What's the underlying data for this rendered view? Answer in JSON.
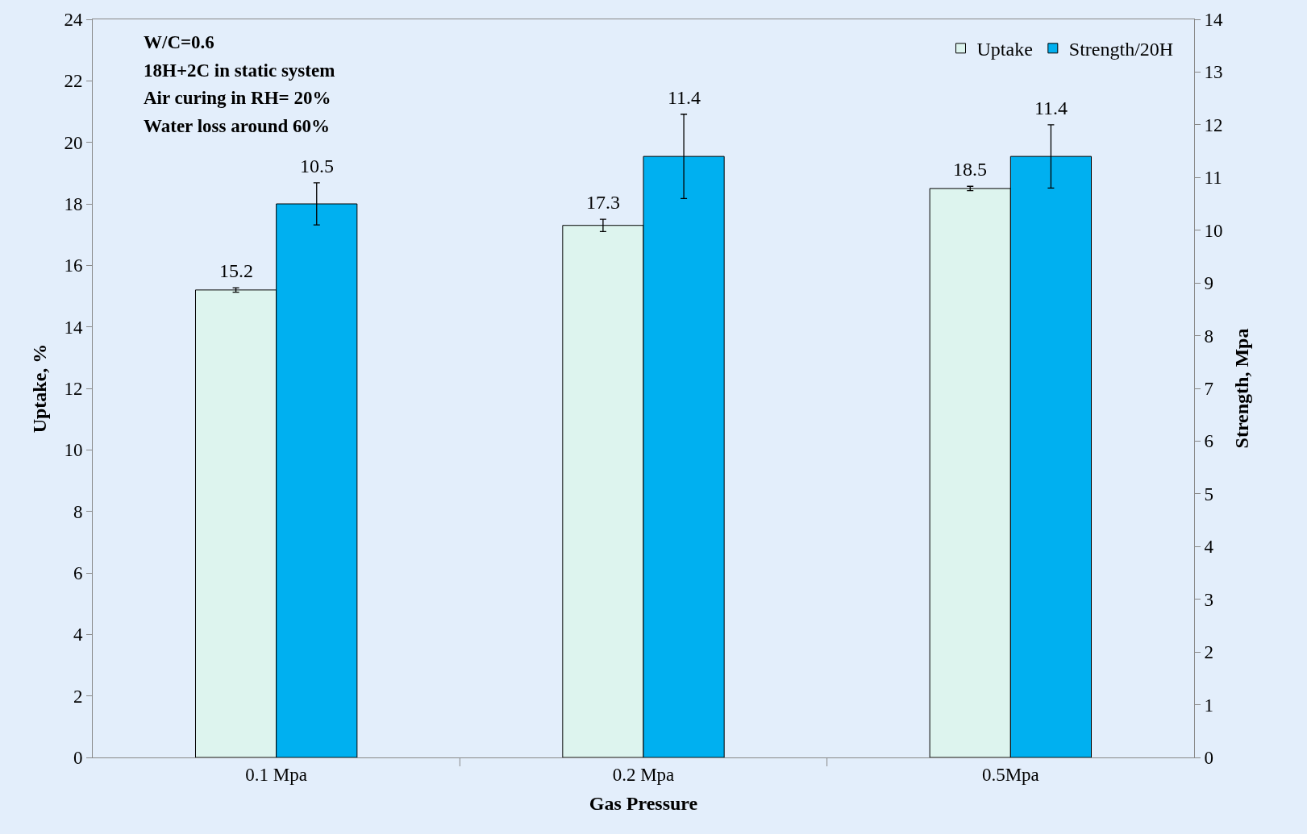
{
  "chart_data": {
    "type": "bar",
    "xlabel": "Gas Pressure",
    "ylabel": "Uptake, %",
    "y2label": "Strength, Mpa",
    "categories": [
      "0.1 Mpa",
      "0.2 Mpa",
      "0.5Mpa"
    ],
    "series": [
      {
        "name": "Uptake",
        "color": "#ddf4ee",
        "values": [
          15.2,
          17.3,
          18.5
        ],
        "errors": [
          0.07,
          0.2,
          0.07
        ]
      },
      {
        "name": "Strength/20H",
        "color": "#00b0f0",
        "values": [
          10.5,
          11.4,
          11.4
        ],
        "errors": [
          0.4,
          0.8,
          0.6
        ],
        "axis": "y2"
      }
    ],
    "ylim": [
      0,
      24
    ],
    "yticks": [
      0,
      2,
      4,
      6,
      8,
      10,
      12,
      14,
      16,
      18,
      20,
      22,
      24
    ],
    "y2lim": [
      0,
      14
    ],
    "y2ticks": [
      0,
      1,
      2,
      3,
      4,
      5,
      6,
      7,
      8,
      9,
      10,
      11,
      12,
      13,
      14
    ],
    "annotations": [
      "W/C=0.6",
      "18H+2C in static system",
      "Air curing in RH= 20%",
      "Water loss around 60%"
    ],
    "data_labels": true,
    "legend": "top right",
    "grid": false
  }
}
